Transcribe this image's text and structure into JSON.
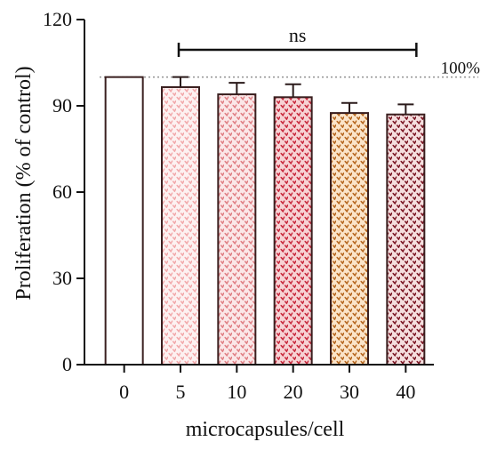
{
  "chart_data": {
    "type": "bar",
    "xlabel": "microcapsules/cell",
    "ylabel": "Proliferation (% of control)",
    "categories": [
      "0",
      "5",
      "10",
      "20",
      "30",
      "40"
    ],
    "values": [
      100,
      96.5,
      94,
      93,
      87.5,
      87
    ],
    "errors": [
      0,
      3.5,
      4,
      4.5,
      3.5,
      3.5
    ],
    "ylim": [
      0,
      120
    ],
    "yticks": [
      "0",
      "30",
      "60",
      "90",
      "120"
    ],
    "ytick_values": [
      0,
      30,
      60,
      90,
      120
    ],
    "grid": false,
    "reference_line": {
      "value": 100,
      "label": "100%",
      "style": "dotted"
    },
    "significance": {
      "label": "ns",
      "from_category": "5",
      "to_category": "40"
    },
    "bar_styles": [
      {
        "fill": "#ffffff",
        "pattern": "none",
        "dot_color": "#ffffff"
      },
      {
        "fill": "#fdf1f1",
        "pattern": "dots",
        "dot_color": "#f2a8aa"
      },
      {
        "fill": "#fbe7e8",
        "pattern": "dots",
        "dot_color": "#e07f84"
      },
      {
        "fill": "#f7d2d4",
        "pattern": "dots",
        "dot_color": "#c8283c"
      },
      {
        "fill": "#fbe4c9",
        "pattern": "dots",
        "dot_color": "#b5651d"
      },
      {
        "fill": "#f5dede",
        "pattern": "dots",
        "dot_color": "#7a1422"
      }
    ],
    "outline_color": "#3a1f1f"
  }
}
